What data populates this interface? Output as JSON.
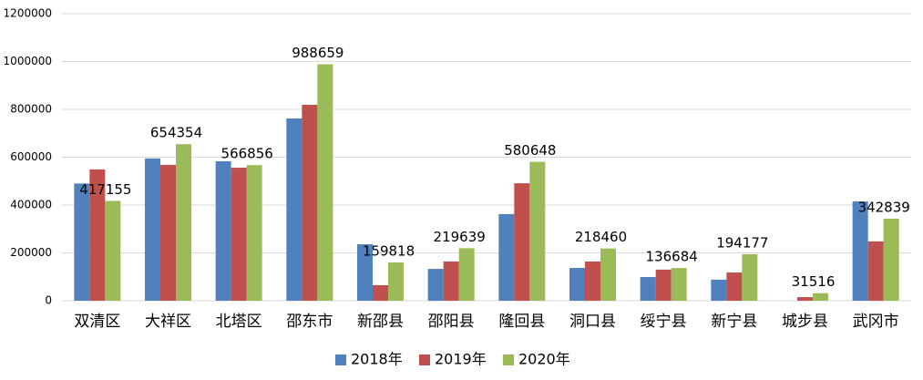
{
  "chart_data": {
    "type": "bar",
    "categories": [
      "双清区",
      "大祥区",
      "北塔区",
      "邵东市",
      "新邵县",
      "邵阳县",
      "隆回县",
      "洞口县",
      "绥宁县",
      "新宁县",
      "城步县",
      "武冈市"
    ],
    "series": [
      {
        "name": "2018年",
        "color": "#4f81bd",
        "values": [
          490000,
          595000,
          583000,
          762000,
          236000,
          133000,
          362000,
          137000,
          99000,
          88000,
          0,
          415000
        ]
      },
      {
        "name": "2019年",
        "color": "#c0504d",
        "values": [
          549000,
          568000,
          556000,
          819000,
          65000,
          164000,
          491000,
          164000,
          130000,
          118000,
          15000,
          248000
        ]
      },
      {
        "name": "2020年",
        "color": "#9bbb59",
        "values": [
          417155,
          654354,
          566856,
          988659,
          159818,
          219639,
          580648,
          218460,
          136684,
          194177,
          31516,
          342839
        ],
        "data_labels": true
      }
    ],
    "ylim": [
      0,
      1200000
    ],
    "yticks": [
      0,
      200000,
      400000,
      600000,
      800000,
      1000000,
      1200000
    ],
    "grid": true,
    "legend": "bottom"
  }
}
